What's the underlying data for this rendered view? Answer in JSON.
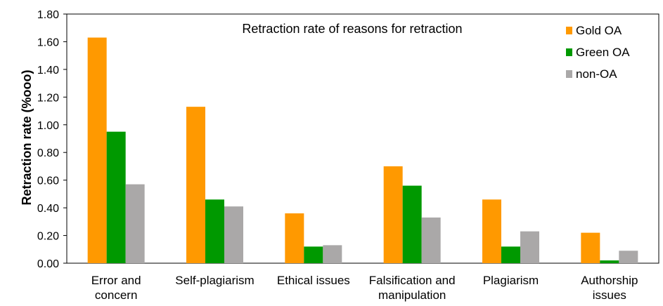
{
  "chart_data": {
    "type": "bar",
    "title": "Retraction rate of reasons for retraction",
    "xlabel": "",
    "ylabel": "Retraction rate (%ooo)",
    "ylim": [
      0,
      1.8
    ],
    "ytick_step": 0.2,
    "ytick_labels": [
      "0.00",
      "0.20",
      "0.40",
      "0.60",
      "0.80",
      "1.00",
      "1.20",
      "1.40",
      "1.60",
      "1.80"
    ],
    "categories": [
      [
        "Error and",
        "concern"
      ],
      [
        "Self-plagiarism"
      ],
      [
        "Ethical issues"
      ],
      [
        "Falsification and",
        "manipulation"
      ],
      [
        "Plagiarism"
      ],
      [
        "Authorship",
        "issues"
      ]
    ],
    "series": [
      {
        "name": "Gold OA",
        "color": "#FF9900",
        "values": [
          1.63,
          1.13,
          0.36,
          0.7,
          0.46,
          0.22
        ]
      },
      {
        "name": "Green OA",
        "color": "#009900",
        "values": [
          0.95,
          0.46,
          0.12,
          0.56,
          0.12,
          0.02
        ]
      },
      {
        "name": "non-OA",
        "color": "#AAA8A8",
        "values": [
          0.57,
          0.41,
          0.13,
          0.33,
          0.23,
          0.09
        ]
      }
    ],
    "grid": false,
    "legend_position": "top-right"
  }
}
